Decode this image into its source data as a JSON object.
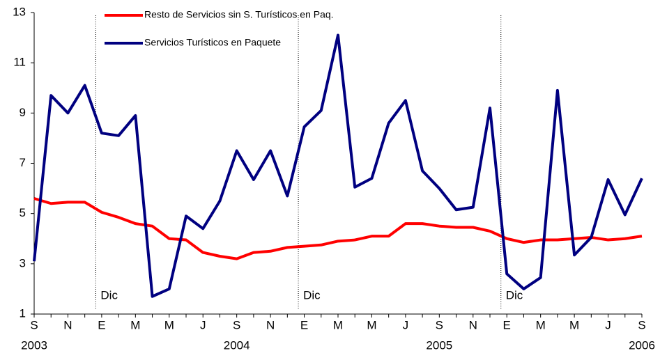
{
  "chart_data": {
    "type": "line",
    "categories": [
      "S",
      null,
      "N",
      null,
      "E",
      null,
      "M",
      null,
      "M",
      null,
      "J",
      null,
      "S",
      null,
      "N",
      null,
      "E",
      null,
      "M",
      null,
      "M",
      null,
      "J",
      null,
      "S",
      null,
      "N",
      null,
      "E",
      null,
      "M",
      null,
      "M",
      null,
      "J",
      null,
      "S"
    ],
    "year_labels": [
      "2003",
      null,
      null,
      null,
      null,
      null,
      null,
      null,
      null,
      null,
      null,
      null,
      "2004",
      null,
      null,
      null,
      null,
      null,
      null,
      null,
      null,
      null,
      null,
      null,
      "2005",
      null,
      null,
      null,
      null,
      null,
      null,
      null,
      null,
      null,
      null,
      null,
      "2006"
    ],
    "series": [
      {
        "name": "Resto de Servicios sin S. Turísticos en Paq.",
        "color": "#ff0000",
        "values": [
          5.6,
          5.4,
          5.45,
          5.45,
          5.05,
          4.85,
          4.6,
          4.5,
          4.0,
          3.95,
          3.45,
          3.3,
          3.2,
          3.45,
          3.5,
          3.65,
          3.7,
          3.75,
          3.9,
          3.95,
          4.1,
          4.1,
          4.6,
          4.6,
          4.5,
          4.45,
          4.45,
          4.3,
          4.0,
          3.85,
          3.95,
          3.95,
          4.0,
          4.05,
          3.95,
          4.0,
          4.1
        ]
      },
      {
        "name": "Servicios Turísticos en Paquete",
        "color": "#000080",
        "values": [
          3.1,
          9.7,
          9.0,
          10.1,
          8.2,
          8.1,
          8.9,
          1.7,
          2.0,
          4.9,
          4.4,
          5.5,
          7.5,
          6.35,
          7.5,
          5.7,
          8.45,
          9.1,
          12.1,
          6.05,
          6.4,
          8.6,
          9.5,
          6.7,
          6.0,
          5.15,
          5.25,
          9.2,
          2.6,
          2.0,
          2.45,
          9.9,
          3.35,
          4.05,
          6.35,
          4.95,
          6.4
        ]
      }
    ],
    "annotations": [
      {
        "index": 3,
        "label": "Dic"
      },
      {
        "index": 15,
        "label": "Dic"
      },
      {
        "index": 27,
        "label": "Dic"
      }
    ],
    "ylim": [
      1,
      13
    ],
    "yticks": [
      1,
      3,
      5,
      7,
      9,
      11,
      13
    ],
    "grid": false,
    "legend": "top-left"
  }
}
